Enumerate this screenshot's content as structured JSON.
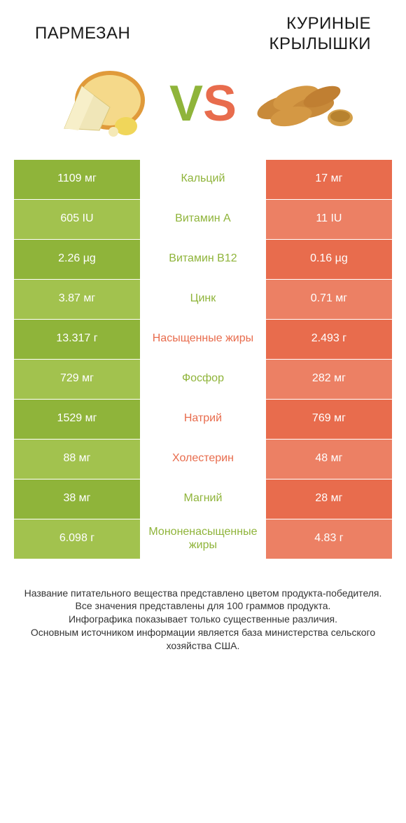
{
  "colors": {
    "green": "#8fb43a",
    "green_lighter": "#a2c24e",
    "green_text": "#8fb43a",
    "orange": "#e86c4d",
    "orange_lighter": "#ec8064",
    "orange_text": "#e86c4d"
  },
  "header": {
    "left_title": "ПАРМЕЗАН",
    "right_title": "КУРИНЫЕ КРЫЛЫШКИ"
  },
  "vs": {
    "v": "V",
    "s": "S"
  },
  "rows": [
    {
      "left": "1109 мг",
      "mid": "Кальций",
      "right": "17 мг",
      "winner": "left"
    },
    {
      "left": "605 IU",
      "mid": "Витамин A",
      "right": "11 IU",
      "winner": "left"
    },
    {
      "left": "2.26 µg",
      "mid": "Витамин B12",
      "right": "0.16 µg",
      "winner": "left"
    },
    {
      "left": "3.87 мг",
      "mid": "Цинк",
      "right": "0.71 мг",
      "winner": "left"
    },
    {
      "left": "13.317 г",
      "mid": "Насыщенные жиры",
      "right": "2.493 г",
      "winner": "right"
    },
    {
      "left": "729 мг",
      "mid": "Фосфор",
      "right": "282 мг",
      "winner": "left"
    },
    {
      "left": "1529 мг",
      "mid": "Натрий",
      "right": "769 мг",
      "winner": "right"
    },
    {
      "left": "88 мг",
      "mid": "Холестерин",
      "right": "48 мг",
      "winner": "right"
    },
    {
      "left": "38 мг",
      "mid": "Магний",
      "right": "28 мг",
      "winner": "left"
    },
    {
      "left": "6.098 г",
      "mid": "Мононенасыщенные жиры",
      "right": "4.83 г",
      "winner": "left"
    }
  ],
  "footer": {
    "line1": "Название питательного вещества представлено цветом продукта-победителя.",
    "line2": "Все значения представлены для 100 граммов продукта.",
    "line3": "Инфографика показывает только существенные различия.",
    "line4": "Основным источником информации является база министерства сельского хозяйства США."
  }
}
